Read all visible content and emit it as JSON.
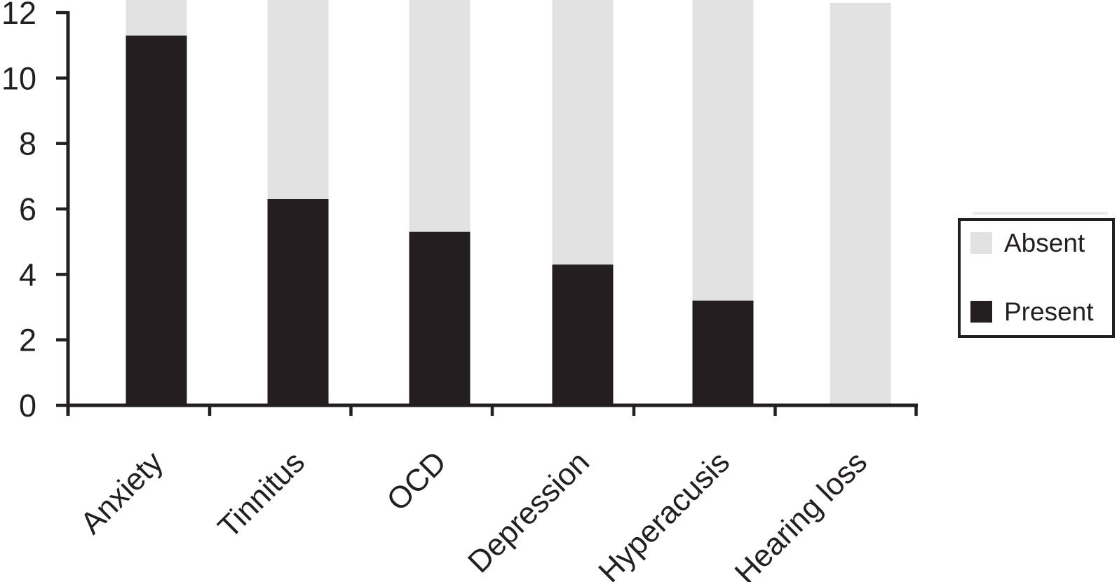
{
  "chart_data": {
    "type": "bar",
    "stacked": true,
    "title": "",
    "xlabel": "",
    "ylabel": "",
    "categories": [
      "Anxiety",
      "Tinnitus",
      "OCD",
      "Depression",
      "Hyperacusis",
      "Hearing loss"
    ],
    "series": [
      {
        "name": "Absent",
        "color": "#e2e2e3",
        "values": [
          1.1,
          6.1,
          7.1,
          8.1,
          9.2,
          12.3
        ]
      },
      {
        "name": "Present",
        "color": "#231f20",
        "values": [
          11.3,
          6.3,
          5.3,
          4.3,
          3.2,
          0
        ]
      }
    ],
    "visible_totals": [
      12.4,
      12.4,
      12.4,
      12.4,
      12.4,
      12.3
    ],
    "yticks": [
      0,
      2,
      4,
      6,
      8,
      10,
      12
    ],
    "ytick_labels": [
      "0",
      "2",
      "4",
      "6",
      "8",
      "10",
      "12"
    ],
    "ylim": [
      0,
      12.4
    ],
    "grid": false,
    "bars_extend_beyond_plot_top": true,
    "x_labels_rotation_deg": -45,
    "legend": {
      "position": "right",
      "entries": [
        "Absent",
        "Present"
      ]
    }
  },
  "colors": {
    "present": "#231f20",
    "absent": "#e2e2e3",
    "axis": "#231f20",
    "legend_border": "#231f20",
    "background": "#ffffff",
    "legend_artifact_strip": "#eaeaeb"
  }
}
